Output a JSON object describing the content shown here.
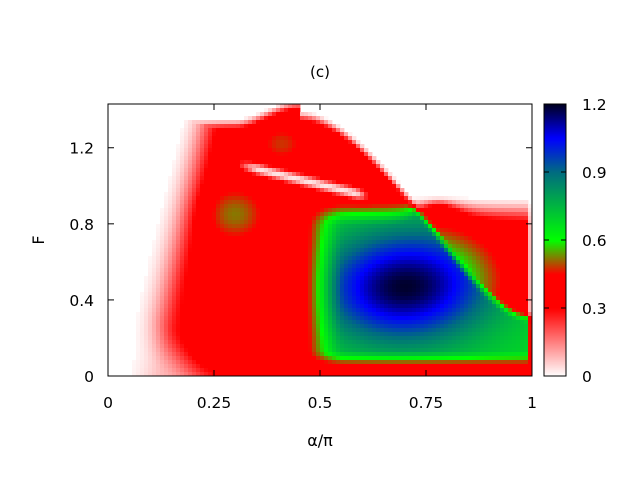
{
  "chart_data": {
    "type": "heatmap",
    "title": "(c)",
    "xlabel": "α/π",
    "ylabel": "F",
    "xlim": [
      0,
      1
    ],
    "ylim": [
      0,
      1.43
    ],
    "x_ticks": [
      {
        "value": 0,
        "label": "0"
      },
      {
        "value": 0.25,
        "label": "0.25"
      },
      {
        "value": 0.5,
        "label": "0.5"
      },
      {
        "value": 0.75,
        "label": "0.75"
      },
      {
        "value": 1,
        "label": "1"
      }
    ],
    "y_ticks": [
      {
        "value": 0,
        "label": "0"
      },
      {
        "value": 0.4,
        "label": "0.4"
      },
      {
        "value": 0.8,
        "label": "0.8"
      },
      {
        "value": 1.2,
        "label": "1.2"
      }
    ],
    "colorbar": {
      "range": [
        0,
        1.2
      ],
      "ticks": [
        {
          "value": 0,
          "label": "0"
        },
        {
          "value": 0.3,
          "label": "0.3"
        },
        {
          "value": 0.6,
          "label": "0.6"
        },
        {
          "value": 0.9,
          "label": "0.9"
        },
        {
          "value": 1.2,
          "label": "1.2"
        }
      ],
      "stops": [
        {
          "value": 0.0,
          "color": "#ffffff"
        },
        {
          "value": 0.3,
          "color": "#ff0000"
        },
        {
          "value": 0.45,
          "color": "#ff0000"
        },
        {
          "value": 0.6,
          "color": "#00ff00"
        },
        {
          "value": 0.9,
          "color": "#006c80"
        },
        {
          "value": 1.05,
          "color": "#0000ff"
        },
        {
          "value": 1.2,
          "color": "#000020"
        }
      ]
    },
    "grid": false,
    "regions": [
      {
        "name": "main-plateau",
        "x_range": [
          0.45,
          1.0
        ],
        "f_range": [
          0.05,
          0.88
        ],
        "peak_x": 0.68,
        "peak_f": 0.47,
        "peak_value": 1.05
      },
      {
        "name": "left-lobe",
        "x_range": [
          0.2,
          0.4
        ],
        "f_range": [
          0.6,
          1.05
        ],
        "peak_x": 0.3,
        "peak_f": 0.85,
        "peak_value": 0.48
      },
      {
        "name": "upper-lobe",
        "x_range": [
          0.32,
          0.48
        ],
        "f_range": [
          1.1,
          1.35
        ],
        "peak_x": 0.41,
        "peak_f": 1.22,
        "peak_value": 0.45
      },
      {
        "name": "white-valley",
        "x_range": [
          0.32,
          0.6
        ],
        "f_range": [
          0.95,
          1.08
        ],
        "value": 0.0
      }
    ]
  }
}
